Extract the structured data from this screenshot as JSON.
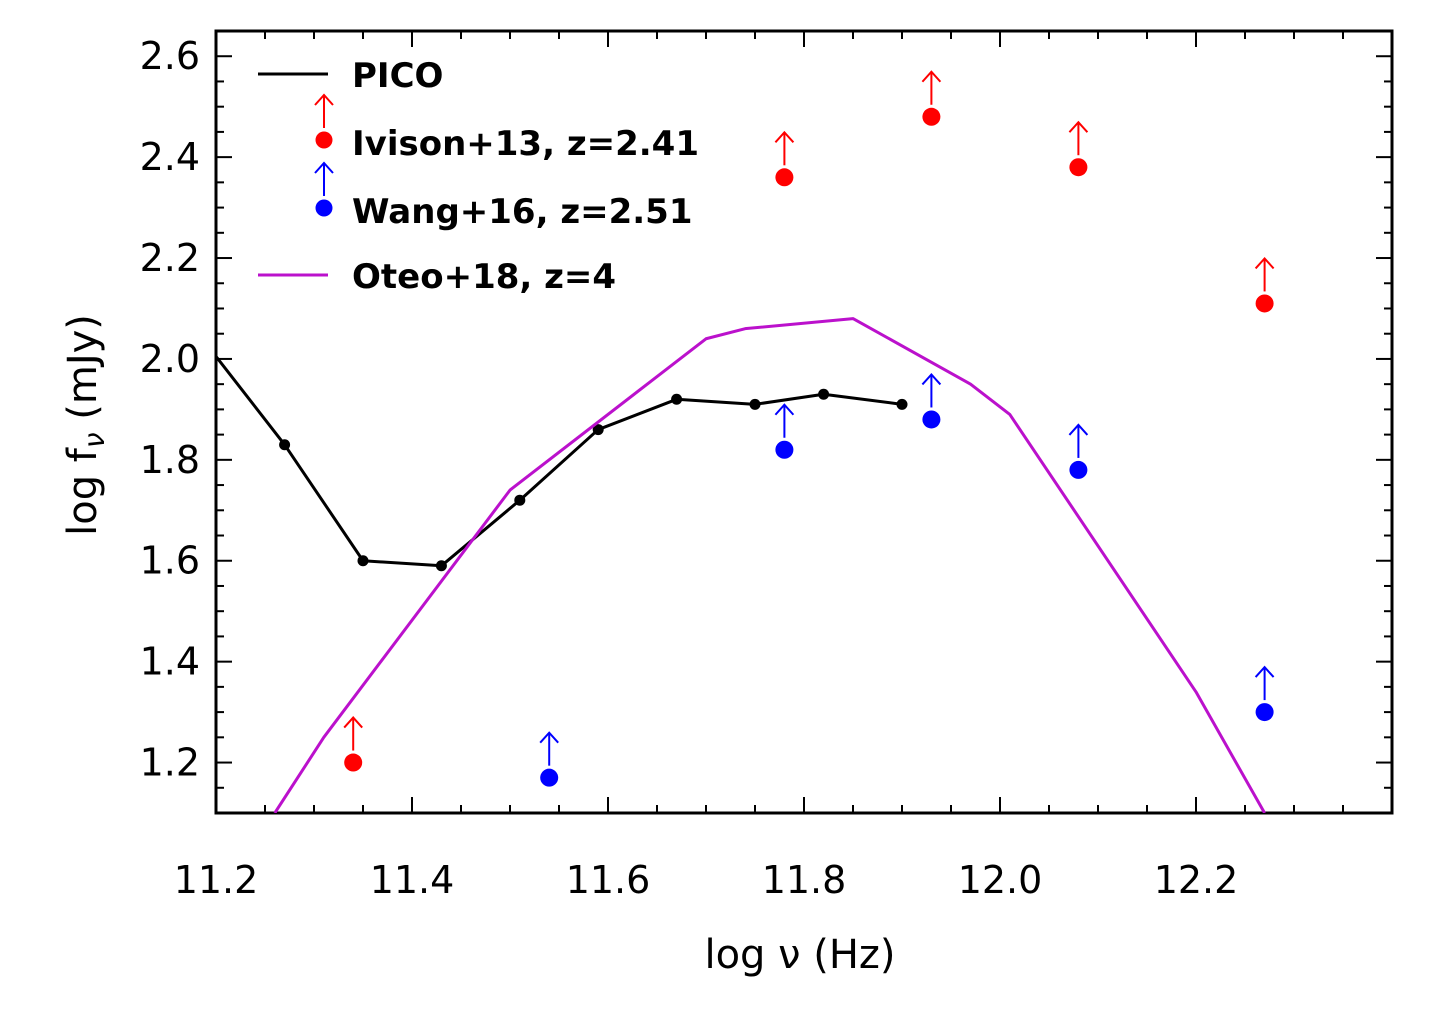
{
  "chart_data": {
    "type": "scatter",
    "xlabel": "log ν (Hz)",
    "ylabel": "log f_ν (mJy)",
    "ylabel_main": "log f",
    "ylabel_sub": "ν",
    "ylabel_unit": " (mJy)",
    "xlim": [
      11.2,
      12.4
    ],
    "ylim": [
      1.1,
      2.65
    ],
    "xticks": [
      11.2,
      11.4,
      11.6,
      11.8,
      12.0,
      12.2
    ],
    "xtick_labels": [
      "11.2",
      "11.4",
      "11.6",
      "11.8",
      "12.0",
      "12.2"
    ],
    "yticks": [
      1.2,
      1.4,
      1.6,
      1.8,
      2.0,
      2.2,
      2.4,
      2.6
    ],
    "ytick_labels": [
      "1.2",
      "1.4",
      "1.6",
      "1.8",
      "2.0",
      "2.2",
      "2.4",
      "2.6"
    ],
    "legend_position": "top-left",
    "series": [
      {
        "name": "PICO",
        "kind": "line-markers",
        "color": "#000000",
        "x": [
          11.17,
          11.27,
          11.35,
          11.43,
          11.51,
          11.59,
          11.67,
          11.75,
          11.82,
          11.9
        ],
        "y": [
          2.08,
          1.83,
          1.6,
          1.59,
          1.72,
          1.86,
          1.92,
          1.91,
          1.93,
          1.91
        ],
        "markers": [
          false,
          true,
          true,
          true,
          true,
          true,
          true,
          true,
          true,
          true
        ]
      },
      {
        "name": "Ivison+13, z=2.41",
        "kind": "lower-limits",
        "color": "#ff0000",
        "x": [
          11.34,
          11.78,
          11.93,
          12.08,
          12.27
        ],
        "y": [
          1.2,
          2.36,
          2.48,
          2.38,
          2.11
        ]
      },
      {
        "name": "Wang+16, z=2.51",
        "kind": "lower-limits",
        "color": "#0000ff",
        "x": [
          11.54,
          11.78,
          11.93,
          12.08,
          12.27
        ],
        "y": [
          1.17,
          1.82,
          1.88,
          1.78,
          1.3
        ]
      },
      {
        "name": "Oteo+18, z=4",
        "kind": "line",
        "color": "#bb11cc",
        "x": [
          11.26,
          11.31,
          11.5,
          11.7,
          11.74,
          11.85,
          11.97,
          12.01,
          12.2,
          12.27
        ],
        "y": [
          1.1,
          1.25,
          1.74,
          2.04,
          2.06,
          2.08,
          1.95,
          1.89,
          1.34,
          1.1
        ]
      }
    ]
  }
}
